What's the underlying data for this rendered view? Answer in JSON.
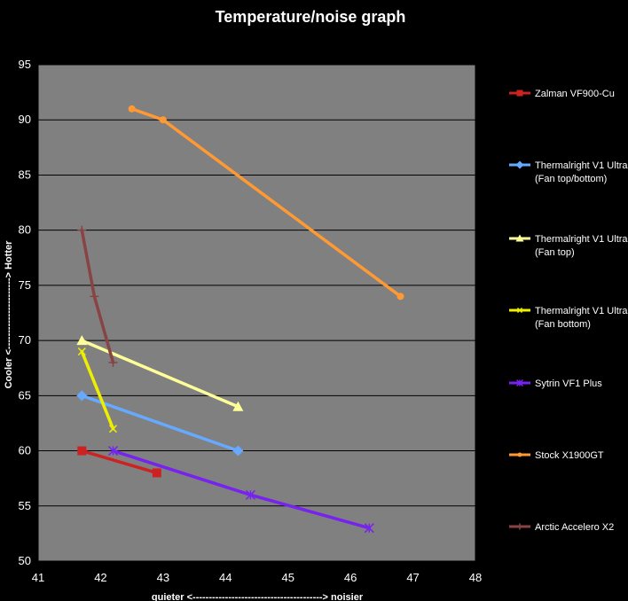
{
  "chart_data": {
    "type": "line",
    "title": "Temperature/noise graph",
    "xlabel": "quieter <----------------------------------------> noisier",
    "ylabel": "Cooler <----------------------> Hotter",
    "xlim": [
      41,
      48
    ],
    "ylim": [
      50,
      95
    ],
    "xticks": [
      "41",
      "42",
      "43",
      "44",
      "45",
      "46",
      "47",
      "48"
    ],
    "yticks": [
      "50",
      "55",
      "60",
      "65",
      "70",
      "75",
      "80",
      "85",
      "90",
      "95"
    ],
    "grid": "horizontal",
    "plot_background": "#808080",
    "legend_position": "right",
    "series": [
      {
        "name": "Zalman VF900-Cu",
        "color": "#cc2222",
        "marker": "square",
        "points": [
          [
            41.7,
            60
          ],
          [
            42.9,
            58
          ]
        ]
      },
      {
        "name": "Thermalright V1 Ultra\n(Fan top/bottom)",
        "color": "#66aaff",
        "marker": "diamond",
        "points": [
          [
            41.7,
            65
          ],
          [
            44.2,
            60
          ]
        ]
      },
      {
        "name": "Thermalright V1 Ultra\n(Fan top)",
        "color": "#ffff99",
        "marker": "triangle",
        "points": [
          [
            41.7,
            70
          ],
          [
            44.2,
            64
          ]
        ]
      },
      {
        "name": "Thermalright V1 Ultra\n(Fan bottom)",
        "color": "#eeee00",
        "marker": "x",
        "points": [
          [
            41.7,
            69
          ],
          [
            42.2,
            62
          ]
        ]
      },
      {
        "name": "Sytrin VF1 Plus",
        "color": "#7722ee",
        "marker": "asterisk",
        "points": [
          [
            42.2,
            60
          ],
          [
            44.4,
            56
          ],
          [
            46.3,
            53
          ]
        ]
      },
      {
        "name": "Stock X1900GT",
        "color": "#ff9933",
        "marker": "circle",
        "points": [
          [
            42.5,
            91
          ],
          [
            43.0,
            90
          ],
          [
            46.8,
            74
          ]
        ]
      },
      {
        "name": "Arctic Accelero X2",
        "color": "#884444",
        "marker": "plus",
        "points": [
          [
            41.7,
            80
          ],
          [
            41.9,
            74
          ],
          [
            42.2,
            68
          ]
        ]
      }
    ]
  }
}
